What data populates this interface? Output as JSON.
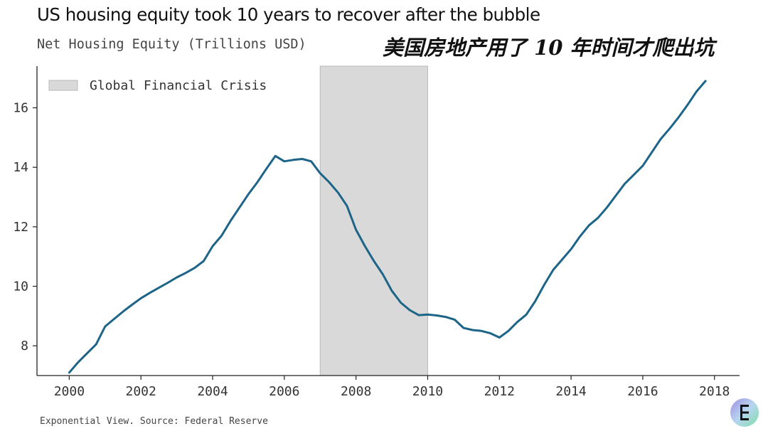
{
  "header": {
    "title": "US housing equity took 10 years to recover after the bubble",
    "subtitle": "Net Housing Equity (Trillions USD)",
    "annotation": "美国房地产用了 10 年时间才爬出坑"
  },
  "footer": {
    "source": "Exponential View. Source: Federal Reserve",
    "logo_icon": "exponential-view-logo-icon"
  },
  "colors": {
    "line": "#1c6488",
    "shade": "#d9d9d9",
    "shade_edge": "#b8b8b8",
    "axis": "#222222"
  },
  "chart_data": {
    "type": "line",
    "title": "US housing equity took 10 years to recover after the bubble",
    "subtitle": "Net Housing Equity (Trillions USD)",
    "xlabel": "",
    "ylabel": "",
    "xlim": [
      1999.1,
      2018.7
    ],
    "ylim": [
      7.0,
      17.4
    ],
    "x_ticks": [
      2000,
      2002,
      2004,
      2006,
      2008,
      2010,
      2012,
      2014,
      2016,
      2018
    ],
    "y_ticks": [
      8,
      10,
      12,
      14,
      16
    ],
    "grid": false,
    "legend": {
      "placement": "top-left",
      "entries": [
        "Global Financial Crisis"
      ]
    },
    "shaded_regions": [
      {
        "label": "Global Financial Crisis",
        "x_start": 2007.0,
        "x_end": 2010.0
      }
    ],
    "series": [
      {
        "x": [
          2000.0,
          2000.25,
          2000.5,
          2000.75,
          2001.0,
          2001.25,
          2001.5,
          2001.75,
          2002.0,
          2002.25,
          2002.5,
          2002.75,
          2003.0,
          2003.25,
          2003.5,
          2003.75,
          2004.0,
          2004.25,
          2004.5,
          2004.75,
          2005.0,
          2005.25,
          2005.5,
          2005.75,
          2006.0,
          2006.25,
          2006.5,
          2006.75,
          2007.0,
          2007.25,
          2007.5,
          2007.75,
          2008.0,
          2008.25,
          2008.5,
          2008.75,
          2009.0,
          2009.25,
          2009.5,
          2009.75,
          2010.0,
          2010.25,
          2010.5,
          2010.75,
          2011.0,
          2011.25,
          2011.5,
          2011.75,
          2012.0,
          2012.25,
          2012.5,
          2012.75,
          2013.0,
          2013.25,
          2013.5,
          2013.75,
          2014.0,
          2014.25,
          2014.5,
          2014.75,
          2015.0,
          2015.25,
          2015.5,
          2015.75,
          2016.0,
          2016.25,
          2016.5,
          2016.75,
          2017.0,
          2017.25,
          2017.5,
          2017.75
        ],
        "values": [
          7.1,
          7.45,
          7.75,
          8.05,
          8.65,
          8.9,
          9.15,
          9.38,
          9.6,
          9.78,
          9.95,
          10.12,
          10.3,
          10.45,
          10.62,
          10.85,
          11.35,
          11.7,
          12.2,
          12.65,
          13.1,
          13.5,
          13.95,
          14.38,
          14.2,
          14.25,
          14.28,
          14.2,
          13.8,
          13.5,
          13.15,
          12.7,
          11.9,
          11.35,
          10.85,
          10.4,
          9.85,
          9.45,
          9.2,
          9.03,
          9.05,
          9.02,
          8.97,
          8.88,
          8.6,
          8.53,
          8.5,
          8.42,
          8.28,
          8.5,
          8.8,
          9.05,
          9.5,
          10.05,
          10.55,
          10.9,
          11.25,
          11.68,
          12.05,
          12.3,
          12.65,
          13.05,
          13.45,
          13.75,
          14.05,
          14.5,
          14.95,
          15.3,
          15.68,
          16.1,
          16.55,
          16.9
        ]
      }
    ]
  }
}
